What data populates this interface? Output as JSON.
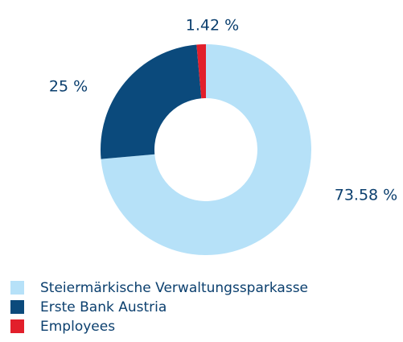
{
  "chart_data": {
    "type": "pie",
    "donut": true,
    "categories": [
      "Steiermärkische Verwaltungssparkasse",
      "Erste Bank Austria",
      "Employees"
    ],
    "values": [
      73.58,
      25,
      1.42
    ],
    "value_labels": [
      "73.58 %",
      "25 %",
      "1.42 %"
    ],
    "colors": [
      "#b6e1f8",
      "#0b4a7c",
      "#e21f2b"
    ]
  }
}
